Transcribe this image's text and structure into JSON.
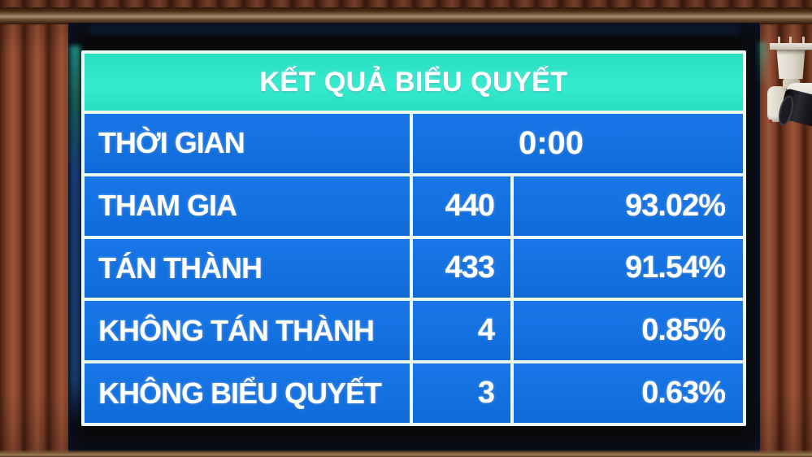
{
  "title": "KẾT QUẢ BIỂU QUYẾT",
  "rows": {
    "time": {
      "label": "THỜI GIAN",
      "value": "0:00"
    },
    "items": [
      {
        "label": "THAM GIA",
        "count": "440",
        "percent": "93.02%"
      },
      {
        "label": "TÁN THÀNH",
        "count": "433",
        "percent": "91.54%"
      },
      {
        "label": "KHÔNG TÁN THÀNH",
        "count": "4",
        "percent": "0.85%"
      },
      {
        "label": "KHÔNG BIỂU QUYẾT",
        "count": "3",
        "percent": "0.63%"
      }
    ]
  },
  "colors": {
    "header_teal": "#2de5c6",
    "cell_blue": "#1571e2",
    "grid_white": "#e9f8f2",
    "text": "#ffffff",
    "wood_brown": "#7c3d26",
    "bezel_black": "#0a0a0d"
  },
  "scene": {
    "objects": [
      "wood-slat-wall",
      "led-display-board",
      "surveillance-camera"
    ]
  },
  "chart_data": {
    "type": "table",
    "title": "KẾT QUẢ BIỂU QUYẾT",
    "rows": [
      [
        "THỜI GIAN",
        "0:00",
        ""
      ],
      [
        "THAM GIA",
        "440",
        "93.02%"
      ],
      [
        "TÁN THÀNH",
        "433",
        "91.54%"
      ],
      [
        "KHÔNG TÁN THÀNH",
        "4",
        "0.85%"
      ],
      [
        "KHÔNG BIỂU QUYẾT",
        "3",
        "0.63%"
      ]
    ],
    "notes": "Voting-results table shown on an LED board; column 2 = vote count, column 3 = percentage; time row value spans columns 2-3."
  }
}
